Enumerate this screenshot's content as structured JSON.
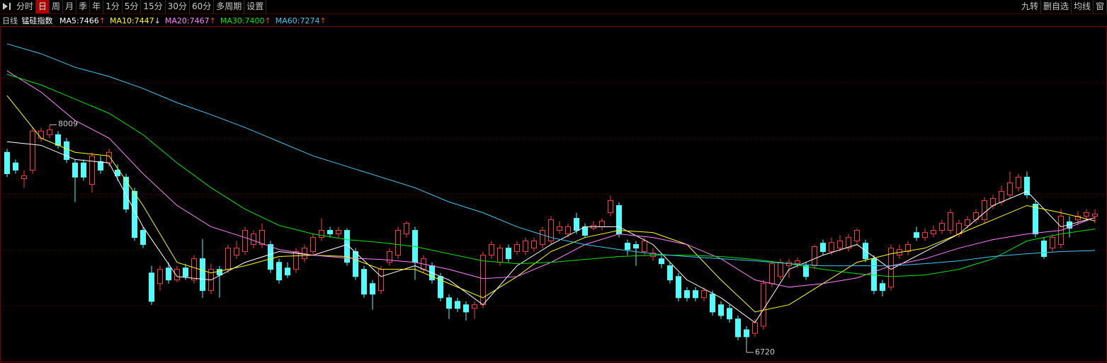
{
  "toolbar": {
    "left": [
      "分时",
      "日",
      "周",
      "月",
      "季",
      "年",
      "1分",
      "5分",
      "15分",
      "30分",
      "60分",
      "多周期",
      "设置"
    ],
    "selected": 1,
    "right": [
      "九转",
      "删自选",
      "均线",
      "窗"
    ]
  },
  "header": {
    "period": "日线",
    "name": "锰硅指数"
  },
  "chart_data": {
    "type": "candlestick",
    "ylim": [
      6625,
      8581
    ],
    "up_color": "#ff3c3c",
    "down_color": "#54fcfc",
    "max": 8009,
    "min": 6720,
    "ohlc": [
      [
        7848,
        7869,
        7703,
        7723
      ],
      [
        7786,
        7806,
        7723,
        7744
      ],
      [
        7694,
        7744,
        7641,
        7711
      ],
      [
        7744,
        7993,
        7723,
        7972
      ],
      [
        7931,
        7993,
        7910,
        7972
      ],
      [
        7951,
        8009,
        7931,
        7980
      ],
      [
        7951,
        7972,
        7869,
        7889
      ],
      [
        7910,
        7931,
        7786,
        7806
      ],
      [
        7786,
        7806,
        7557,
        7703
      ],
      [
        7786,
        7806,
        7682,
        7703
      ],
      [
        7661,
        7848,
        7612,
        7827
      ],
      [
        7794,
        7827,
        7723,
        7744
      ],
      [
        7786,
        7869,
        7765,
        7848
      ],
      [
        7744,
        7777,
        7682,
        7711
      ],
      [
        7703,
        7723,
        7495,
        7516
      ],
      [
        7620,
        7641,
        7330,
        7350
      ],
      [
        7392,
        7413,
        7288,
        7309
      ],
      [
        7143,
        7185,
        6957,
        6977
      ],
      [
        7081,
        7185,
        7040,
        7164
      ],
      [
        7172,
        7205,
        7081,
        7102
      ],
      [
        7102,
        7185,
        7089,
        7164
      ],
      [
        7172,
        7197,
        7102,
        7122
      ],
      [
        7102,
        7247,
        7081,
        7226
      ],
      [
        7226,
        7342,
        6998,
        7040
      ],
      [
        7040,
        7197,
        7019,
        7164
      ],
      [
        7164,
        7185,
        6998,
        7131
      ],
      [
        7164,
        7309,
        7143,
        7288
      ],
      [
        7247,
        7330,
        7226,
        7288
      ],
      [
        7268,
        7413,
        7247,
        7392
      ],
      [
        7309,
        7392,
        7288,
        7371
      ],
      [
        7309,
        7433,
        7288,
        7392
      ],
      [
        7309,
        7330,
        7143,
        7164
      ],
      [
        7205,
        7226,
        7081,
        7102
      ],
      [
        7172,
        7205,
        7114,
        7131
      ],
      [
        7164,
        7288,
        7143,
        7268
      ],
      [
        7226,
        7309,
        7205,
        7288
      ],
      [
        7268,
        7371,
        7247,
        7350
      ],
      [
        7350,
        7462,
        7330,
        7392
      ],
      [
        7392,
        7413,
        7350,
        7371
      ],
      [
        7371,
        7413,
        7350,
        7392
      ],
      [
        7392,
        7404,
        7185,
        7205
      ],
      [
        7268,
        7288,
        7102,
        7122
      ],
      [
        7164,
        7185,
        6998,
        7019
      ],
      [
        7081,
        7102,
        6928,
        7019
      ],
      [
        7040,
        7185,
        7019,
        7164
      ],
      [
        7205,
        7288,
        7185,
        7268
      ],
      [
        7247,
        7413,
        7226,
        7392
      ],
      [
        7371,
        7446,
        7350,
        7433
      ],
      [
        7392,
        7413,
        7102,
        7205
      ],
      [
        7164,
        7247,
        7143,
        7226
      ],
      [
        7185,
        7205,
        7081,
        7102
      ],
      [
        7122,
        7143,
        6977,
        6998
      ],
      [
        6998,
        7019,
        6874,
        6936
      ],
      [
        6977,
        6998,
        6915,
        6936
      ],
      [
        6957,
        6977,
        6865,
        6915
      ],
      [
        6936,
        6977,
        6874,
        6957
      ],
      [
        6957,
        7268,
        6936,
        7247
      ],
      [
        7247,
        7330,
        7226,
        7309
      ],
      [
        7205,
        7309,
        7185,
        7288
      ],
      [
        7288,
        7309,
        7205,
        7226
      ],
      [
        7268,
        7330,
        7247,
        7309
      ],
      [
        7268,
        7350,
        7247,
        7330
      ],
      [
        7288,
        7350,
        7268,
        7330
      ],
      [
        7309,
        7413,
        7288,
        7392
      ],
      [
        7330,
        7475,
        7309,
        7454
      ],
      [
        7392,
        7446,
        7371,
        7413
      ],
      [
        7371,
        7433,
        7350,
        7413
      ],
      [
        7462,
        7495,
        7371,
        7392
      ],
      [
        7413,
        7433,
        7350,
        7363
      ],
      [
        7404,
        7446,
        7392,
        7421
      ],
      [
        7413,
        7462,
        7392,
        7446
      ],
      [
        7495,
        7595,
        7475,
        7566
      ],
      [
        7537,
        7557,
        7350,
        7371
      ],
      [
        7317,
        7338,
        7247,
        7280
      ],
      [
        7309,
        7330,
        7185,
        7288
      ],
      [
        7268,
        7350,
        7247,
        7330
      ],
      [
        7239,
        7288,
        7214,
        7259
      ],
      [
        7226,
        7247,
        7172,
        7197
      ],
      [
        7185,
        7205,
        7081,
        7102
      ],
      [
        7122,
        7143,
        6977,
        6998
      ],
      [
        7040,
        7060,
        6977,
        6998
      ],
      [
        7040,
        7060,
        6977,
        6998
      ],
      [
        6998,
        7060,
        6977,
        7040
      ],
      [
        7019,
        7040,
        6894,
        6915
      ],
      [
        6957,
        6977,
        6874,
        6894
      ],
      [
        6936,
        6957,
        6853,
        6874
      ],
      [
        6874,
        6894,
        6749,
        6770
      ],
      [
        6811,
        6832,
        6720,
        6770
      ],
      [
        6790,
        6874,
        6770,
        6853
      ],
      [
        6832,
        7102,
        6811,
        7081
      ],
      [
        7081,
        7214,
        7060,
        7197
      ],
      [
        7122,
        7226,
        7102,
        7205
      ],
      [
        7185,
        7226,
        7114,
        7205
      ],
      [
        7197,
        7234,
        7172,
        7214
      ],
      [
        7185,
        7205,
        7102,
        7122
      ],
      [
        7185,
        7309,
        7164,
        7297
      ],
      [
        7317,
        7338,
        7247,
        7268
      ],
      [
        7268,
        7350,
        7247,
        7321
      ],
      [
        7288,
        7363,
        7268,
        7330
      ],
      [
        7288,
        7371,
        7268,
        7350
      ],
      [
        7330,
        7404,
        7309,
        7392
      ],
      [
        7317,
        7338,
        7205,
        7226
      ],
      [
        7226,
        7247,
        7019,
        7040
      ],
      [
        7081,
        7102,
        7006,
        7040
      ],
      [
        7060,
        7309,
        7040,
        7288
      ],
      [
        7247,
        7309,
        7226,
        7280
      ],
      [
        7268,
        7330,
        7247,
        7309
      ],
      [
        7379,
        7413,
        7330,
        7350
      ],
      [
        7350,
        7404,
        7330,
        7379
      ],
      [
        7371,
        7421,
        7350,
        7392
      ],
      [
        7392,
        7454,
        7371,
        7433
      ],
      [
        7392,
        7516,
        7371,
        7495
      ],
      [
        7371,
        7454,
        7350,
        7433
      ],
      [
        7421,
        7475,
        7404,
        7454
      ],
      [
        7454,
        7516,
        7433,
        7495
      ],
      [
        7454,
        7587,
        7433,
        7566
      ],
      [
        7537,
        7599,
        7516,
        7578
      ],
      [
        7558,
        7653,
        7537,
        7620
      ],
      [
        7599,
        7736,
        7578,
        7669
      ],
      [
        7641,
        7723,
        7620,
        7703
      ],
      [
        7703,
        7736,
        7578,
        7599
      ],
      [
        7545,
        7566,
        7350,
        7371
      ],
      [
        7330,
        7350,
        7226,
        7239
      ],
      [
        7288,
        7371,
        7268,
        7350
      ],
      [
        7309,
        7516,
        7288,
        7475
      ],
      [
        7442,
        7475,
        7350,
        7404
      ],
      [
        7454,
        7504,
        7421,
        7475
      ],
      [
        7475,
        7516,
        7446,
        7495
      ],
      [
        7475,
        7516,
        7433,
        7487
      ]
    ],
    "ma_x": [
      0,
      4,
      8,
      12,
      16,
      20,
      24,
      28,
      32,
      36,
      40,
      44,
      48,
      52,
      56,
      60,
      64,
      68,
      72,
      76,
      80,
      84,
      88,
      92,
      96,
      100,
      104,
      108,
      112,
      116,
      120,
      124,
      128
    ],
    "series": [
      {
        "name": "MA5:",
        "color": "#ffffff",
        "last": 7466,
        "trend": "↑",
        "trend_color": "#ff3c3c",
        "values": [
          7910,
          7889,
          7806,
          7786,
          7413,
          7122,
          7102,
          7205,
          7268,
          7247,
          7309,
          7122,
          7185,
          7102,
          6957,
          7185,
          7309,
          7413,
          7413,
          7309,
          7102,
          6998,
          6853,
          7164,
          7247,
          7309,
          7164,
          7268,
          7371,
          7537,
          7620,
          7413,
          7466
        ]
      },
      {
        "name": "MA10:",
        "color": "#ffff00",
        "last": 7447,
        "trend": "↓",
        "trend_color": "#e0e0e0",
        "values": [
          8179,
          7931,
          7848,
          7827,
          7537,
          7205,
          7143,
          7185,
          7239,
          7247,
          7239,
          7164,
          7164,
          7081,
          6998,
          7122,
          7268,
          7350,
          7392,
          7379,
          7309,
          7102,
          6915,
          6957,
          7081,
          7205,
          7255,
          7288,
          7371,
          7454,
          7537,
          7495,
          7447
        ]
      },
      {
        "name": "MA20:",
        "color": "#ff80ff",
        "last": 7467,
        "trend": "↑",
        "trend_color": "#ff3c3c",
        "values": [
          8324,
          8200,
          8034,
          7931,
          7723,
          7537,
          7413,
          7350,
          7280,
          7247,
          7230,
          7222,
          7205,
          7164,
          7110,
          7122,
          7205,
          7309,
          7371,
          7350,
          7309,
          7226,
          7102,
          7060,
          7081,
          7114,
          7185,
          7226,
          7288,
          7338,
          7371,
          7392,
          7467
        ]
      },
      {
        "name": "MA30:",
        "color": "#00e600",
        "last": 7400,
        "trend": "↑",
        "trend_color": "#ff3c3c",
        "values": [
          8304,
          8242,
          8159,
          8076,
          7951,
          7786,
          7641,
          7516,
          7421,
          7371,
          7338,
          7321,
          7297,
          7255,
          7214,
          7197,
          7205,
          7222,
          7239,
          7247,
          7247,
          7239,
          7222,
          7197,
          7164,
          7139,
          7122,
          7131,
          7164,
          7226,
          7330,
          7371,
          7400
        ]
      },
      {
        "name": "MA60:",
        "color": "#40c8f0",
        "last": 7274,
        "trend": "↑",
        "trend_color": "#ff3c3c",
        "values": [
          8482,
          8424,
          8345,
          8291,
          8221,
          8138,
          8068,
          7993,
          7910,
          7827,
          7765,
          7703,
          7641,
          7558,
          7495,
          7413,
          7350,
          7309,
          7280,
          7255,
          7239,
          7226,
          7214,
          7197,
          7185,
          7185,
          7185,
          7197,
          7214,
          7239,
          7255,
          7268,
          7274
        ]
      }
    ]
  }
}
